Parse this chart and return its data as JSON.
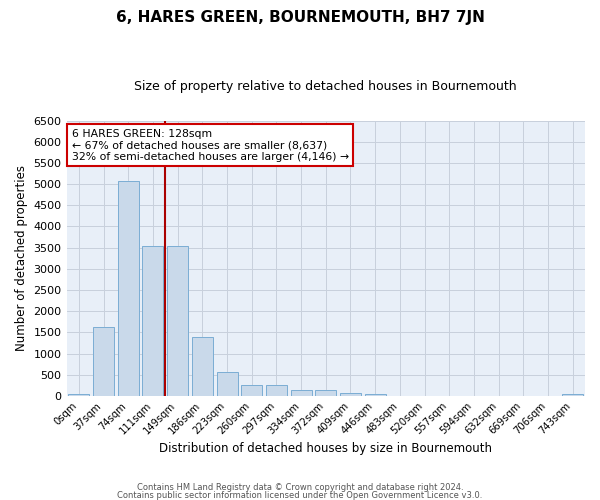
{
  "title": "6, HARES GREEN, BOURNEMOUTH, BH7 7JN",
  "subtitle": "Size of property relative to detached houses in Bournemouth",
  "xlabel": "Distribution of detached houses by size in Bournemouth",
  "ylabel": "Number of detached properties",
  "categories": [
    "0sqm",
    "37sqm",
    "74sqm",
    "111sqm",
    "149sqm",
    "186sqm",
    "223sqm",
    "260sqm",
    "297sqm",
    "334sqm",
    "372sqm",
    "409sqm",
    "446sqm",
    "483sqm",
    "520sqm",
    "557sqm",
    "594sqm",
    "632sqm",
    "669sqm",
    "706sqm",
    "743sqm"
  ],
  "values": [
    50,
    1620,
    5080,
    3550,
    3550,
    1390,
    570,
    270,
    270,
    140,
    130,
    70,
    50,
    0,
    0,
    0,
    0,
    0,
    0,
    0,
    50
  ],
  "bar_color": "#c9d9ea",
  "bar_edge_color": "#7badd4",
  "vline_x_index": 3.5,
  "vline_color": "#aa0000",
  "ylim": [
    0,
    6500
  ],
  "yticks": [
    0,
    500,
    1000,
    1500,
    2000,
    2500,
    3000,
    3500,
    4000,
    4500,
    5000,
    5500,
    6000,
    6500
  ],
  "annotation_title": "6 HARES GREEN: 128sqm",
  "annotation_line1": "← 67% of detached houses are smaller (8,637)",
  "annotation_line2": "32% of semi-detached houses are larger (4,146) →",
  "annotation_box_color": "#cc0000",
  "footnote1": "Contains HM Land Registry data © Crown copyright and database right 2024.",
  "footnote2": "Contains public sector information licensed under the Open Government Licence v3.0.",
  "grid_color": "#c8d0dc",
  "bg_color": "#e8eff8",
  "title_fontsize": 11,
  "subtitle_fontsize": 9
}
